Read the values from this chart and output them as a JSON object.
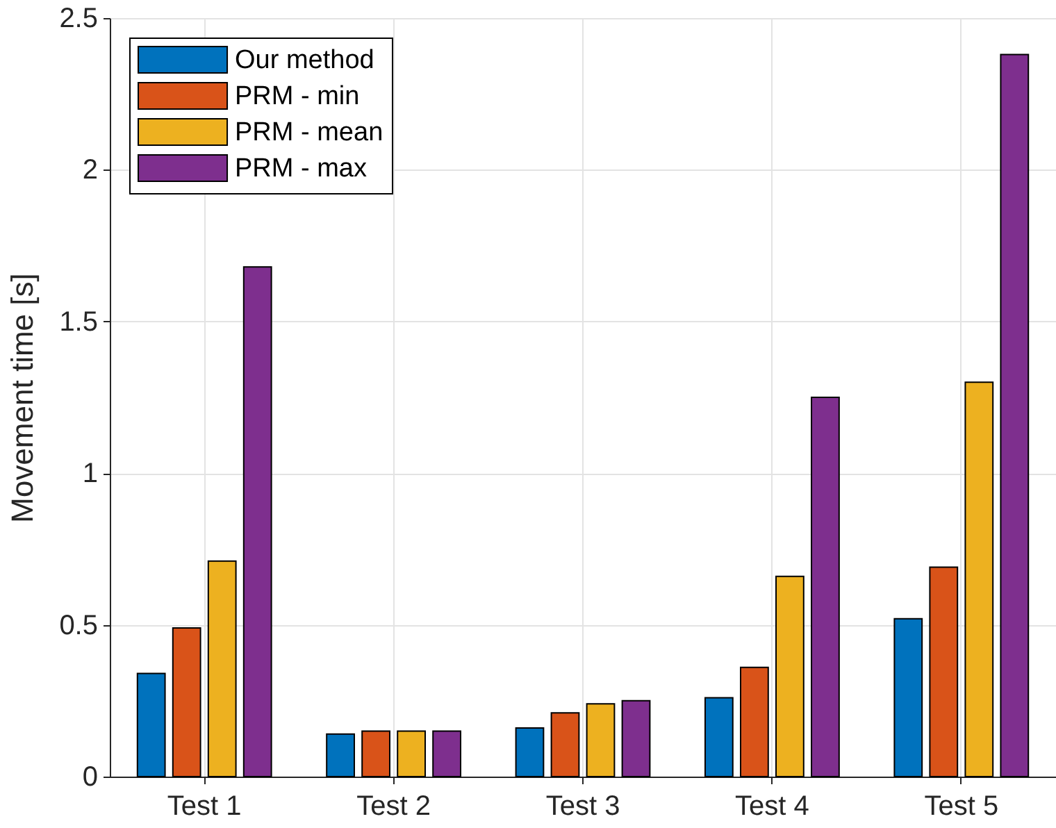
{
  "chart_data": {
    "type": "bar",
    "ylabel": "Movement time [s]",
    "categories": [
      "Test 1",
      "Test 2",
      "Test 3",
      "Test 4",
      "Test 5"
    ],
    "series": [
      {
        "name": "Our method",
        "color": "#0072bd",
        "values": [
          0.34,
          0.14,
          0.16,
          0.26,
          0.52
        ]
      },
      {
        "name": "PRM - min",
        "color": "#d95319",
        "values": [
          0.49,
          0.15,
          0.21,
          0.36,
          0.69
        ]
      },
      {
        "name": "PRM - mean",
        "color": "#edb120",
        "values": [
          0.71,
          0.15,
          0.24,
          0.66,
          1.3
        ]
      },
      {
        "name": "PRM - max",
        "color": "#7e2f8e",
        "values": [
          1.68,
          0.15,
          0.25,
          1.25,
          2.38
        ]
      }
    ],
    "ylim": [
      0,
      2.5
    ],
    "yticks": [
      0,
      0.5,
      1,
      1.5,
      2,
      2.5
    ],
    "grid": true,
    "legend": "top left"
  }
}
